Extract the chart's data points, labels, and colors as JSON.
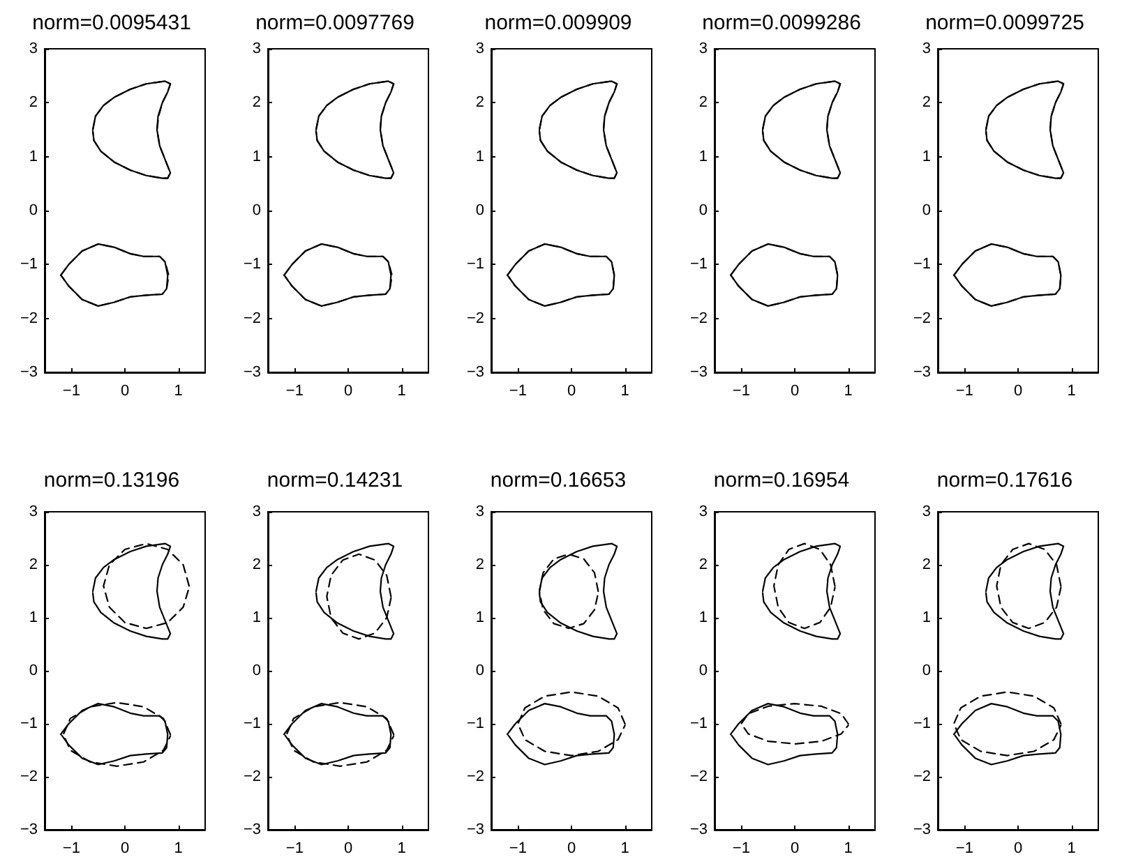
{
  "chart_data": [
    {
      "type": "line",
      "title": "norm=0.0095431",
      "xlim": [
        -1.5,
        1.5
      ],
      "xticks": [
        -1,
        0,
        1
      ],
      "ylim": [
        -3,
        3
      ],
      "yticks": [
        -3,
        -2,
        -1,
        0,
        1,
        2,
        3
      ],
      "marker": "none",
      "series": [
        {
          "color": "#000000",
          "line_style": "solid",
          "x": [
            -0.6,
            -0.55,
            -0.4,
            -0.2,
            0.1,
            0.4,
            0.75,
            0.85,
            0.8,
            0.7,
            0.62,
            0.6,
            0.65,
            0.75,
            0.85,
            0.8,
            0.7,
            0.4,
            0.1,
            -0.2,
            -0.45,
            -0.58,
            -0.6
          ],
          "values": [
            1.5,
            1.75,
            1.95,
            2.1,
            2.25,
            2.35,
            2.4,
            2.35,
            2.2,
            2.0,
            1.75,
            1.5,
            1.2,
            0.95,
            0.7,
            0.6,
            0.6,
            0.65,
            0.75,
            0.9,
            1.1,
            1.3,
            1.47
          ]
        },
        {
          "color": "#000000",
          "line_style": "solid",
          "x": [
            -1.2,
            -1.05,
            -0.8,
            -0.5,
            -0.2,
            0.1,
            0.35,
            0.65,
            0.75,
            0.8,
            0.78,
            0.7,
            0.4,
            0.1,
            -0.2,
            -0.5,
            -0.8,
            -1.05,
            -1.18
          ],
          "values": [
            -1.2,
            -1.0,
            -0.75,
            -0.62,
            -0.68,
            -0.8,
            -0.85,
            -0.85,
            -0.95,
            -1.2,
            -1.45,
            -1.55,
            -1.57,
            -1.6,
            -1.7,
            -1.77,
            -1.65,
            -1.4,
            -1.22
          ]
        },
        {
          "color": "#000000",
          "line_style": "dashed",
          "x": [
            -0.6,
            -0.55,
            -0.4,
            -0.2,
            0.1,
            0.4,
            0.75,
            0.85,
            0.8,
            0.7,
            0.63,
            0.6,
            0.65,
            0.75,
            0.85,
            0.8,
            0.7,
            0.4,
            0.1,
            -0.2,
            -0.45,
            -0.58,
            -0.6
          ],
          "values": [
            1.5,
            1.75,
            1.95,
            2.1,
            2.25,
            2.35,
            2.4,
            2.35,
            2.2,
            2.0,
            1.75,
            1.5,
            1.2,
            0.95,
            0.7,
            0.6,
            0.6,
            0.65,
            0.75,
            0.9,
            1.1,
            1.3,
            1.47
          ]
        },
        {
          "color": "#000000",
          "line_style": "dashed",
          "x": [
            -1.2,
            -1.05,
            -0.8,
            -0.5,
            -0.2,
            0.1,
            0.35,
            0.65,
            0.75,
            0.82,
            0.78,
            0.7,
            0.4,
            0.1,
            -0.2,
            -0.5,
            -0.8,
            -1.05,
            -1.18
          ],
          "values": [
            -1.2,
            -1.0,
            -0.75,
            -0.62,
            -0.68,
            -0.8,
            -0.85,
            -0.85,
            -0.95,
            -1.2,
            -1.45,
            -1.55,
            -1.57,
            -1.6,
            -1.7,
            -1.77,
            -1.65,
            -1.4,
            -1.22
          ]
        }
      ]
    },
    {
      "type": "line",
      "title": "norm=0.0097769",
      "xlim": [
        -1.5,
        1.5
      ],
      "xticks": [
        -1,
        0,
        1
      ],
      "ylim": [
        -3,
        3
      ],
      "yticks": [
        -3,
        -2,
        -1,
        0,
        1,
        2,
        3
      ],
      "marker": "none",
      "series": [
        {
          "color": "#000000",
          "line_style": "solid",
          "x": [
            -0.6,
            -0.55,
            -0.4,
            -0.2,
            0.1,
            0.4,
            0.75,
            0.85,
            0.8,
            0.7,
            0.62,
            0.6,
            0.65,
            0.75,
            0.85,
            0.8,
            0.7,
            0.4,
            0.1,
            -0.2,
            -0.45,
            -0.58,
            -0.6
          ],
          "values": [
            1.5,
            1.75,
            1.95,
            2.1,
            2.25,
            2.35,
            2.4,
            2.35,
            2.2,
            2.0,
            1.75,
            1.5,
            1.2,
            0.95,
            0.7,
            0.6,
            0.6,
            0.65,
            0.75,
            0.9,
            1.1,
            1.3,
            1.47
          ]
        },
        {
          "color": "#000000",
          "line_style": "solid",
          "x": [
            -1.2,
            -1.05,
            -0.8,
            -0.5,
            -0.2,
            0.1,
            0.35,
            0.65,
            0.75,
            0.8,
            0.78,
            0.7,
            0.4,
            0.1,
            -0.2,
            -0.5,
            -0.8,
            -1.05,
            -1.18
          ],
          "values": [
            -1.2,
            -1.0,
            -0.75,
            -0.62,
            -0.68,
            -0.8,
            -0.85,
            -0.85,
            -0.95,
            -1.2,
            -1.45,
            -1.55,
            -1.57,
            -1.6,
            -1.7,
            -1.77,
            -1.65,
            -1.4,
            -1.22
          ]
        },
        {
          "color": "#000000",
          "line_style": "dashed",
          "x": [
            -0.6,
            -0.55,
            -0.4,
            -0.2,
            0.1,
            0.4,
            0.75,
            0.85,
            0.8,
            0.7,
            0.62,
            0.6,
            0.65,
            0.75,
            0.85,
            0.8,
            0.7,
            0.4,
            0.1,
            -0.2,
            -0.45,
            -0.58,
            -0.6
          ],
          "values": [
            1.5,
            1.75,
            1.95,
            2.1,
            2.25,
            2.35,
            2.4,
            2.35,
            2.2,
            2.0,
            1.75,
            1.5,
            1.2,
            0.95,
            0.7,
            0.6,
            0.6,
            0.65,
            0.75,
            0.9,
            1.1,
            1.3,
            1.47
          ]
        },
        {
          "color": "#000000",
          "line_style": "dashed",
          "x": [
            -1.2,
            -1.05,
            -0.8,
            -0.5,
            -0.2,
            0.1,
            0.35,
            0.65,
            0.75,
            0.82,
            0.78,
            0.7,
            0.4,
            0.1,
            -0.2,
            -0.5,
            -0.8,
            -1.05,
            -1.18
          ],
          "values": [
            -1.2,
            -1.0,
            -0.75,
            -0.62,
            -0.68,
            -0.8,
            -0.85,
            -0.85,
            -0.95,
            -1.2,
            -1.45,
            -1.55,
            -1.57,
            -1.6,
            -1.7,
            -1.77,
            -1.65,
            -1.4,
            -1.22
          ]
        }
      ]
    },
    {
      "type": "line",
      "title": "norm=0.009909",
      "xlim": [
        -1.5,
        1.5
      ],
      "xticks": [
        -1,
        0,
        1
      ],
      "ylim": [
        -3,
        3
      ],
      "yticks": [
        -3,
        -2,
        -1,
        0,
        1,
        2,
        3
      ],
      "marker": "none",
      "series": [
        {
          "color": "#000000",
          "line_style": "solid",
          "x": [
            -0.6,
            -0.55,
            -0.4,
            -0.2,
            0.1,
            0.4,
            0.75,
            0.85,
            0.8,
            0.7,
            0.62,
            0.6,
            0.65,
            0.75,
            0.85,
            0.8,
            0.7,
            0.4,
            0.1,
            -0.2,
            -0.45,
            -0.58,
            -0.6
          ],
          "values": [
            1.5,
            1.75,
            1.95,
            2.1,
            2.25,
            2.35,
            2.4,
            2.35,
            2.2,
            2.0,
            1.75,
            1.5,
            1.2,
            0.95,
            0.7,
            0.6,
            0.6,
            0.65,
            0.75,
            0.9,
            1.1,
            1.3,
            1.47
          ]
        },
        {
          "color": "#000000",
          "line_style": "solid",
          "x": [
            -1.2,
            -1.05,
            -0.8,
            -0.5,
            -0.2,
            0.1,
            0.35,
            0.65,
            0.75,
            0.8,
            0.78,
            0.7,
            0.4,
            0.1,
            -0.2,
            -0.5,
            -0.8,
            -1.05,
            -1.18
          ],
          "values": [
            -1.2,
            -1.0,
            -0.75,
            -0.62,
            -0.68,
            -0.8,
            -0.85,
            -0.85,
            -0.95,
            -1.2,
            -1.45,
            -1.55,
            -1.57,
            -1.6,
            -1.7,
            -1.77,
            -1.65,
            -1.4,
            -1.22
          ]
        },
        {
          "color": "#000000",
          "line_style": "dashed",
          "x": [
            -0.6,
            -0.55,
            -0.4,
            -0.2,
            0.1,
            0.4,
            0.75,
            0.85,
            0.8,
            0.7,
            0.62,
            0.6,
            0.65,
            0.75,
            0.85,
            0.8,
            0.7,
            0.4,
            0.1,
            -0.2,
            -0.45,
            -0.58,
            -0.6
          ],
          "values": [
            1.5,
            1.75,
            1.95,
            2.1,
            2.25,
            2.35,
            2.4,
            2.35,
            2.2,
            2.0,
            1.75,
            1.5,
            1.2,
            0.95,
            0.7,
            0.6,
            0.6,
            0.65,
            0.75,
            0.9,
            1.1,
            1.3,
            1.47
          ]
        },
        {
          "color": "#000000",
          "line_style": "dashed",
          "x": [
            -1.2,
            -1.05,
            -0.8,
            -0.5,
            -0.2,
            0.1,
            0.35,
            0.65,
            0.75,
            0.8,
            0.78,
            0.7,
            0.4,
            0.1,
            -0.2,
            -0.5,
            -0.8,
            -1.05,
            -1.18
          ],
          "values": [
            -1.2,
            -1.0,
            -0.75,
            -0.62,
            -0.68,
            -0.8,
            -0.85,
            -0.85,
            -0.95,
            -1.2,
            -1.45,
            -1.55,
            -1.57,
            -1.6,
            -1.7,
            -1.77,
            -1.65,
            -1.4,
            -1.22
          ]
        }
      ]
    },
    {
      "type": "line",
      "title": "norm=0.0099286",
      "xlim": [
        -1.5,
        1.5
      ],
      "xticks": [
        -1,
        0,
        1
      ],
      "ylim": [
        -3,
        3
      ],
      "yticks": [
        -3,
        -2,
        -1,
        0,
        1,
        2,
        3
      ],
      "marker": "none",
      "series": [
        {
          "color": "#000000",
          "line_style": "solid",
          "x": [
            -0.6,
            -0.55,
            -0.4,
            -0.2,
            0.1,
            0.4,
            0.75,
            0.85,
            0.8,
            0.7,
            0.62,
            0.6,
            0.65,
            0.75,
            0.85,
            0.8,
            0.7,
            0.4,
            0.1,
            -0.2,
            -0.45,
            -0.58,
            -0.6
          ],
          "values": [
            1.5,
            1.75,
            1.95,
            2.1,
            2.25,
            2.35,
            2.4,
            2.35,
            2.2,
            2.0,
            1.75,
            1.5,
            1.2,
            0.95,
            0.7,
            0.6,
            0.6,
            0.65,
            0.75,
            0.9,
            1.1,
            1.3,
            1.47
          ]
        },
        {
          "color": "#000000",
          "line_style": "solid",
          "x": [
            -1.2,
            -1.05,
            -0.8,
            -0.5,
            -0.2,
            0.1,
            0.35,
            0.65,
            0.75,
            0.8,
            0.78,
            0.7,
            0.4,
            0.1,
            -0.2,
            -0.5,
            -0.8,
            -1.05,
            -1.18
          ],
          "values": [
            -1.2,
            -1.0,
            -0.75,
            -0.62,
            -0.68,
            -0.8,
            -0.85,
            -0.85,
            -0.95,
            -1.2,
            -1.45,
            -1.55,
            -1.57,
            -1.6,
            -1.7,
            -1.77,
            -1.65,
            -1.4,
            -1.22
          ]
        },
        {
          "color": "#000000",
          "line_style": "dashed",
          "x": [
            -0.6,
            -0.55,
            -0.4,
            -0.2,
            0.1,
            0.4,
            0.75,
            0.85,
            0.8,
            0.7,
            0.62,
            0.6,
            0.65,
            0.75,
            0.85,
            0.8,
            0.7,
            0.4,
            0.1,
            -0.2,
            -0.45,
            -0.58,
            -0.6
          ],
          "values": [
            1.5,
            1.75,
            1.95,
            2.1,
            2.25,
            2.35,
            2.4,
            2.35,
            2.2,
            2.0,
            1.75,
            1.5,
            1.2,
            0.95,
            0.7,
            0.6,
            0.6,
            0.65,
            0.75,
            0.9,
            1.1,
            1.3,
            1.47
          ]
        },
        {
          "color": "#000000",
          "line_style": "dashed",
          "x": [
            -1.2,
            -1.05,
            -0.8,
            -0.5,
            -0.2,
            0.1,
            0.35,
            0.65,
            0.75,
            0.8,
            0.78,
            0.7,
            0.4,
            0.1,
            -0.2,
            -0.5,
            -0.8,
            -1.05,
            -1.18
          ],
          "values": [
            -1.2,
            -1.0,
            -0.75,
            -0.62,
            -0.68,
            -0.8,
            -0.85,
            -0.85,
            -0.95,
            -1.2,
            -1.45,
            -1.55,
            -1.57,
            -1.6,
            -1.7,
            -1.77,
            -1.65,
            -1.4,
            -1.22
          ]
        }
      ]
    },
    {
      "type": "line",
      "title": "norm=0.0099725",
      "xlim": [
        -1.5,
        1.5
      ],
      "xticks": [
        -1,
        0,
        1
      ],
      "ylim": [
        -3,
        3
      ],
      "yticks": [
        -3,
        -2,
        -1,
        0,
        1,
        2,
        3
      ],
      "marker": "none",
      "series": [
        {
          "color": "#000000",
          "line_style": "solid",
          "x": [
            -0.6,
            -0.55,
            -0.4,
            -0.2,
            0.1,
            0.4,
            0.75,
            0.85,
            0.8,
            0.7,
            0.62,
            0.6,
            0.65,
            0.75,
            0.85,
            0.8,
            0.7,
            0.4,
            0.1,
            -0.2,
            -0.45,
            -0.58,
            -0.6
          ],
          "values": [
            1.5,
            1.75,
            1.95,
            2.1,
            2.25,
            2.35,
            2.4,
            2.35,
            2.2,
            2.0,
            1.75,
            1.5,
            1.2,
            0.95,
            0.7,
            0.6,
            0.6,
            0.65,
            0.75,
            0.9,
            1.1,
            1.3,
            1.47
          ]
        },
        {
          "color": "#000000",
          "line_style": "solid",
          "x": [
            -1.2,
            -1.05,
            -0.8,
            -0.5,
            -0.2,
            0.1,
            0.35,
            0.65,
            0.75,
            0.8,
            0.78,
            0.7,
            0.4,
            0.1,
            -0.2,
            -0.5,
            -0.8,
            -1.05,
            -1.18
          ],
          "values": [
            -1.2,
            -1.0,
            -0.75,
            -0.62,
            -0.68,
            -0.8,
            -0.85,
            -0.85,
            -0.95,
            -1.2,
            -1.45,
            -1.55,
            -1.57,
            -1.6,
            -1.7,
            -1.77,
            -1.65,
            -1.4,
            -1.22
          ]
        },
        {
          "color": "#000000",
          "line_style": "dashed",
          "x": [
            -0.6,
            -0.55,
            -0.4,
            -0.2,
            0.1,
            0.4,
            0.75,
            0.85,
            0.8,
            0.7,
            0.62,
            0.6,
            0.65,
            0.75,
            0.85,
            0.8,
            0.7,
            0.4,
            0.1,
            -0.2,
            -0.45,
            -0.58,
            -0.6
          ],
          "values": [
            1.5,
            1.75,
            1.95,
            2.1,
            2.25,
            2.35,
            2.4,
            2.35,
            2.2,
            2.0,
            1.75,
            1.5,
            1.2,
            0.95,
            0.7,
            0.6,
            0.6,
            0.65,
            0.75,
            0.9,
            1.1,
            1.3,
            1.47
          ]
        },
        {
          "color": "#000000",
          "line_style": "dashed",
          "x": [
            -1.2,
            -1.05,
            -0.8,
            -0.5,
            -0.2,
            0.1,
            0.35,
            0.65,
            0.75,
            0.8,
            0.78,
            0.7,
            0.4,
            0.1,
            -0.2,
            -0.5,
            -0.8,
            -1.05,
            -1.18
          ],
          "values": [
            -1.2,
            -1.0,
            -0.75,
            -0.62,
            -0.68,
            -0.8,
            -0.85,
            -0.85,
            -0.95,
            -1.2,
            -1.45,
            -1.55,
            -1.57,
            -1.6,
            -1.7,
            -1.77,
            -1.65,
            -1.4,
            -1.22
          ]
        }
      ]
    },
    {
      "type": "line",
      "title": "norm=0.13196",
      "xlim": [
        -1.5,
        1.5
      ],
      "xticks": [
        -1,
        0,
        1
      ],
      "ylim": [
        -3,
        3
      ],
      "yticks": [
        -3,
        -2,
        -1,
        0,
        1,
        2,
        3
      ],
      "marker": "none",
      "series": [
        {
          "color": "#000000",
          "line_style": "solid",
          "x": [
            -0.6,
            -0.55,
            -0.4,
            -0.2,
            0.1,
            0.4,
            0.75,
            0.85,
            0.8,
            0.7,
            0.62,
            0.6,
            0.65,
            0.75,
            0.85,
            0.8,
            0.7,
            0.4,
            0.1,
            -0.2,
            -0.45,
            -0.58,
            -0.6
          ],
          "values": [
            1.5,
            1.75,
            1.95,
            2.1,
            2.25,
            2.35,
            2.4,
            2.35,
            2.2,
            2.0,
            1.75,
            1.5,
            1.2,
            0.95,
            0.7,
            0.6,
            0.6,
            0.65,
            0.75,
            0.9,
            1.1,
            1.3,
            1.47
          ]
        },
        {
          "color": "#000000",
          "line_style": "solid",
          "x": [
            -1.2,
            -1.05,
            -0.8,
            -0.5,
            -0.2,
            0.1,
            0.35,
            0.65,
            0.75,
            0.8,
            0.78,
            0.7,
            0.4,
            0.1,
            -0.2,
            -0.5,
            -0.8,
            -1.05,
            -1.18
          ],
          "values": [
            -1.2,
            -1.0,
            -0.75,
            -0.62,
            -0.68,
            -0.8,
            -0.85,
            -0.85,
            -0.95,
            -1.2,
            -1.45,
            -1.55,
            -1.57,
            -1.6,
            -1.7,
            -1.77,
            -1.65,
            -1.4,
            -1.22
          ]
        },
        {
          "color": "#000000",
          "line_style": "dashed",
          "x": [
            1.2,
            1.09,
            0.8,
            0.4,
            0,
            -0.29,
            -0.4,
            -0.29,
            0,
            0.4,
            0.8,
            1.09,
            1.2
          ],
          "values": [
            1.6,
            2.0,
            2.29,
            2.4,
            2.29,
            2.0,
            1.6,
            1.2,
            0.91,
            0.8,
            0.91,
            1.2,
            1.57
          ]
        },
        {
          "color": "#000000",
          "line_style": "dashed",
          "x": [
            0.85,
            0.72,
            0.35,
            -0.15,
            -0.65,
            -1.02,
            -1.15,
            -1.02,
            -0.65,
            -0.15,
            0.35,
            0.72,
            0.85
          ],
          "values": [
            -1.2,
            -0.9,
            -0.68,
            -0.6,
            -0.68,
            -0.9,
            -1.2,
            -1.5,
            -1.72,
            -1.8,
            -1.72,
            -1.5,
            -1.23
          ]
        }
      ]
    },
    {
      "type": "line",
      "title": "norm=0.14231",
      "xlim": [
        -1.5,
        1.5
      ],
      "xticks": [
        -1,
        0,
        1
      ],
      "ylim": [
        -3,
        3
      ],
      "yticks": [
        -3,
        -2,
        -1,
        0,
        1,
        2,
        3
      ],
      "marker": "none",
      "series": [
        {
          "color": "#000000",
          "line_style": "solid",
          "x": [
            -0.6,
            -0.55,
            -0.4,
            -0.2,
            0.1,
            0.4,
            0.75,
            0.85,
            0.8,
            0.7,
            0.62,
            0.6,
            0.65,
            0.75,
            0.85,
            0.8,
            0.7,
            0.4,
            0.1,
            -0.2,
            -0.45,
            -0.58,
            -0.6
          ],
          "values": [
            1.5,
            1.75,
            1.95,
            2.1,
            2.25,
            2.35,
            2.4,
            2.35,
            2.2,
            2.0,
            1.75,
            1.5,
            1.2,
            0.95,
            0.7,
            0.6,
            0.6,
            0.65,
            0.75,
            0.9,
            1.1,
            1.3,
            1.47
          ]
        },
        {
          "color": "#000000",
          "line_style": "solid",
          "x": [
            -1.2,
            -1.05,
            -0.8,
            -0.5,
            -0.2,
            0.1,
            0.35,
            0.65,
            0.75,
            0.8,
            0.78,
            0.7,
            0.4,
            0.1,
            -0.2,
            -0.5,
            -0.8,
            -1.05,
            -1.18
          ],
          "values": [
            -1.2,
            -1.0,
            -0.75,
            -0.62,
            -0.68,
            -0.8,
            -0.85,
            -0.85,
            -0.95,
            -1.2,
            -1.45,
            -1.55,
            -1.57,
            -1.6,
            -1.7,
            -1.77,
            -1.65,
            -1.4,
            -1.22
          ]
        },
        {
          "color": "#000000",
          "line_style": "dashed",
          "x": [
            0.8,
            0.72,
            0.5,
            0.2,
            -0.1,
            -0.32,
            -0.4,
            -0.32,
            -0.1,
            0.2,
            0.5,
            0.72,
            0.8
          ],
          "values": [
            1.4,
            1.8,
            2.09,
            2.2,
            2.09,
            1.8,
            1.4,
            1.0,
            0.71,
            0.6,
            0.71,
            1.0,
            1.37
          ]
        },
        {
          "color": "#000000",
          "line_style": "dashed",
          "x": [
            0.85,
            0.72,
            0.35,
            -0.15,
            -0.65,
            -1.02,
            -1.15,
            -1.02,
            -0.65,
            -0.15,
            0.35,
            0.72,
            0.85
          ],
          "values": [
            -1.2,
            -0.9,
            -0.68,
            -0.6,
            -0.68,
            -0.9,
            -1.2,
            -1.5,
            -1.72,
            -1.8,
            -1.72,
            -1.5,
            -1.23
          ]
        }
      ]
    },
    {
      "type": "line",
      "title": "norm=0.16653",
      "xlim": [
        -1.5,
        1.5
      ],
      "xticks": [
        -1,
        0,
        1
      ],
      "ylim": [
        -3,
        3
      ],
      "yticks": [
        -3,
        -2,
        -1,
        0,
        1,
        2,
        3
      ],
      "marker": "none",
      "series": [
        {
          "color": "#000000",
          "line_style": "solid",
          "x": [
            -0.6,
            -0.55,
            -0.4,
            -0.2,
            0.1,
            0.4,
            0.75,
            0.85,
            0.8,
            0.7,
            0.62,
            0.6,
            0.65,
            0.75,
            0.85,
            0.8,
            0.7,
            0.4,
            0.1,
            -0.2,
            -0.45,
            -0.58,
            -0.6
          ],
          "values": [
            1.5,
            1.75,
            1.95,
            2.1,
            2.25,
            2.35,
            2.4,
            2.35,
            2.2,
            2.0,
            1.75,
            1.5,
            1.2,
            0.95,
            0.7,
            0.6,
            0.6,
            0.65,
            0.75,
            0.9,
            1.1,
            1.3,
            1.47
          ]
        },
        {
          "color": "#000000",
          "line_style": "solid",
          "x": [
            -1.2,
            -1.05,
            -0.8,
            -0.5,
            -0.2,
            0.1,
            0.35,
            0.65,
            0.75,
            0.8,
            0.78,
            0.7,
            0.4,
            0.1,
            -0.2,
            -0.5,
            -0.8,
            -1.05,
            -1.18
          ],
          "values": [
            -1.2,
            -1.0,
            -0.75,
            -0.62,
            -0.68,
            -0.8,
            -0.85,
            -0.85,
            -0.95,
            -1.2,
            -1.45,
            -1.55,
            -1.57,
            -1.6,
            -1.7,
            -1.77,
            -1.65,
            -1.4,
            -1.22
          ]
        },
        {
          "color": "#000000",
          "line_style": "dashed",
          "x": [
            0.5,
            0.43,
            0.23,
            -0.05,
            -0.33,
            -0.53,
            -0.6,
            -0.53,
            -0.33,
            -0.05,
            0.23,
            0.43,
            0.5
          ],
          "values": [
            1.5,
            1.85,
            2.11,
            2.2,
            2.11,
            1.85,
            1.5,
            1.15,
            0.89,
            0.8,
            0.89,
            1.15,
            1.47
          ]
        },
        {
          "color": "#000000",
          "line_style": "dashed",
          "x": [
            1,
            0.87,
            0.5,
            0,
            -0.5,
            -0.87,
            -1,
            -0.87,
            -0.5,
            0,
            0.5,
            0.87,
            1
          ],
          "values": [
            -1,
            -0.7,
            -0.48,
            -0.4,
            -0.48,
            -0.7,
            -1,
            -1.3,
            -1.52,
            -1.6,
            -1.52,
            -1.3,
            -1.03
          ]
        }
      ]
    },
    {
      "type": "line",
      "title": "norm=0.16954",
      "xlim": [
        -1.5,
        1.5
      ],
      "xticks": [
        -1,
        0,
        1
      ],
      "ylim": [
        -3,
        3
      ],
      "yticks": [
        -3,
        -2,
        -1,
        0,
        1,
        2,
        3
      ],
      "marker": "none",
      "series": [
        {
          "color": "#000000",
          "line_style": "solid",
          "x": [
            -0.6,
            -0.55,
            -0.4,
            -0.2,
            0.1,
            0.4,
            0.75,
            0.85,
            0.8,
            0.7,
            0.62,
            0.6,
            0.65,
            0.75,
            0.85,
            0.8,
            0.7,
            0.4,
            0.1,
            -0.2,
            -0.45,
            -0.58,
            -0.6
          ],
          "values": [
            1.5,
            1.75,
            1.95,
            2.1,
            2.25,
            2.35,
            2.4,
            2.35,
            2.2,
            2.0,
            1.75,
            1.5,
            1.2,
            0.95,
            0.7,
            0.6,
            0.6,
            0.65,
            0.75,
            0.9,
            1.1,
            1.3,
            1.47
          ]
        },
        {
          "color": "#000000",
          "line_style": "solid",
          "x": [
            -1.2,
            -1.05,
            -0.8,
            -0.5,
            -0.2,
            0.1,
            0.35,
            0.65,
            0.75,
            0.8,
            0.78,
            0.7,
            0.4,
            0.1,
            -0.2,
            -0.5,
            -0.8,
            -1.05,
            -1.18
          ],
          "values": [
            -1.2,
            -1.0,
            -0.75,
            -0.62,
            -0.68,
            -0.8,
            -0.85,
            -0.85,
            -0.95,
            -1.2,
            -1.45,
            -1.55,
            -1.57,
            -1.6,
            -1.7,
            -1.77,
            -1.65,
            -1.4,
            -1.22
          ]
        },
        {
          "color": "#000000",
          "line_style": "dashed",
          "x": [
            0.75,
            0.67,
            0.47,
            0.18,
            -0.11,
            -0.31,
            -0.39,
            -0.31,
            -0.11,
            0.18,
            0.47,
            0.67,
            0.75
          ],
          "values": [
            1.6,
            2.0,
            2.29,
            2.4,
            2.29,
            2.0,
            1.6,
            1.2,
            0.91,
            0.8,
            0.91,
            1.2,
            1.57
          ]
        },
        {
          "color": "#000000",
          "line_style": "dashed",
          "x": [
            1,
            0.87,
            0.5,
            0,
            -0.5,
            -0.87,
            -1,
            -0.87,
            -0.5,
            0,
            0.5,
            0.87,
            1
          ],
          "values": [
            -1,
            -0.81,
            -0.67,
            -0.62,
            -0.67,
            -0.81,
            -1,
            -1.19,
            -1.33,
            -1.38,
            -1.33,
            -1.19,
            -1.03
          ]
        }
      ]
    },
    {
      "type": "line",
      "title": "norm=0.17616",
      "xlim": [
        -1.5,
        1.5
      ],
      "xticks": [
        -1,
        0,
        1
      ],
      "ylim": [
        -3,
        3
      ],
      "yticks": [
        -3,
        -2,
        -1,
        0,
        1,
        2,
        3
      ],
      "marker": "none",
      "series": [
        {
          "color": "#000000",
          "line_style": "solid",
          "x": [
            -0.6,
            -0.55,
            -0.4,
            -0.2,
            0.1,
            0.4,
            0.75,
            0.85,
            0.8,
            0.7,
            0.62,
            0.6,
            0.65,
            0.75,
            0.85,
            0.8,
            0.7,
            0.4,
            0.1,
            -0.2,
            -0.45,
            -0.58,
            -0.6
          ],
          "values": [
            1.5,
            1.75,
            1.95,
            2.1,
            2.25,
            2.35,
            2.4,
            2.35,
            2.2,
            2.0,
            1.75,
            1.5,
            1.2,
            0.95,
            0.7,
            0.6,
            0.6,
            0.65,
            0.75,
            0.9,
            1.1,
            1.3,
            1.47
          ]
        },
        {
          "color": "#000000",
          "line_style": "solid",
          "x": [
            -1.2,
            -1.05,
            -0.8,
            -0.5,
            -0.2,
            0.1,
            0.35,
            0.65,
            0.75,
            0.8,
            0.78,
            0.7,
            0.4,
            0.1,
            -0.2,
            -0.5,
            -0.8,
            -1.05,
            -1.18
          ],
          "values": [
            -1.2,
            -1.0,
            -0.75,
            -0.62,
            -0.68,
            -0.8,
            -0.85,
            -0.85,
            -0.95,
            -1.2,
            -1.45,
            -1.55,
            -1.57,
            -1.6,
            -1.7,
            -1.77,
            -1.65,
            -1.4,
            -1.22
          ]
        },
        {
          "color": "#000000",
          "line_style": "dashed",
          "x": [
            0.8,
            0.72,
            0.5,
            0.2,
            -0.1,
            -0.32,
            -0.4,
            -0.32,
            -0.1,
            0.2,
            0.5,
            0.72,
            0.8
          ],
          "values": [
            1.6,
            2.0,
            2.29,
            2.4,
            2.29,
            2.0,
            1.6,
            1.2,
            0.91,
            0.8,
            0.91,
            1.2,
            1.57
          ]
        },
        {
          "color": "#000000",
          "line_style": "dashed",
          "x": [
            0.8,
            0.67,
            0.3,
            -0.2,
            -0.7,
            -1.07,
            -1.2,
            -1.07,
            -0.7,
            -0.2,
            0.3,
            0.67,
            0.8
          ],
          "values": [
            -1,
            -0.7,
            -0.48,
            -0.4,
            -0.48,
            -0.7,
            -1,
            -1.3,
            -1.52,
            -1.6,
            -1.52,
            -1.3,
            -1.03
          ]
        }
      ]
    }
  ]
}
